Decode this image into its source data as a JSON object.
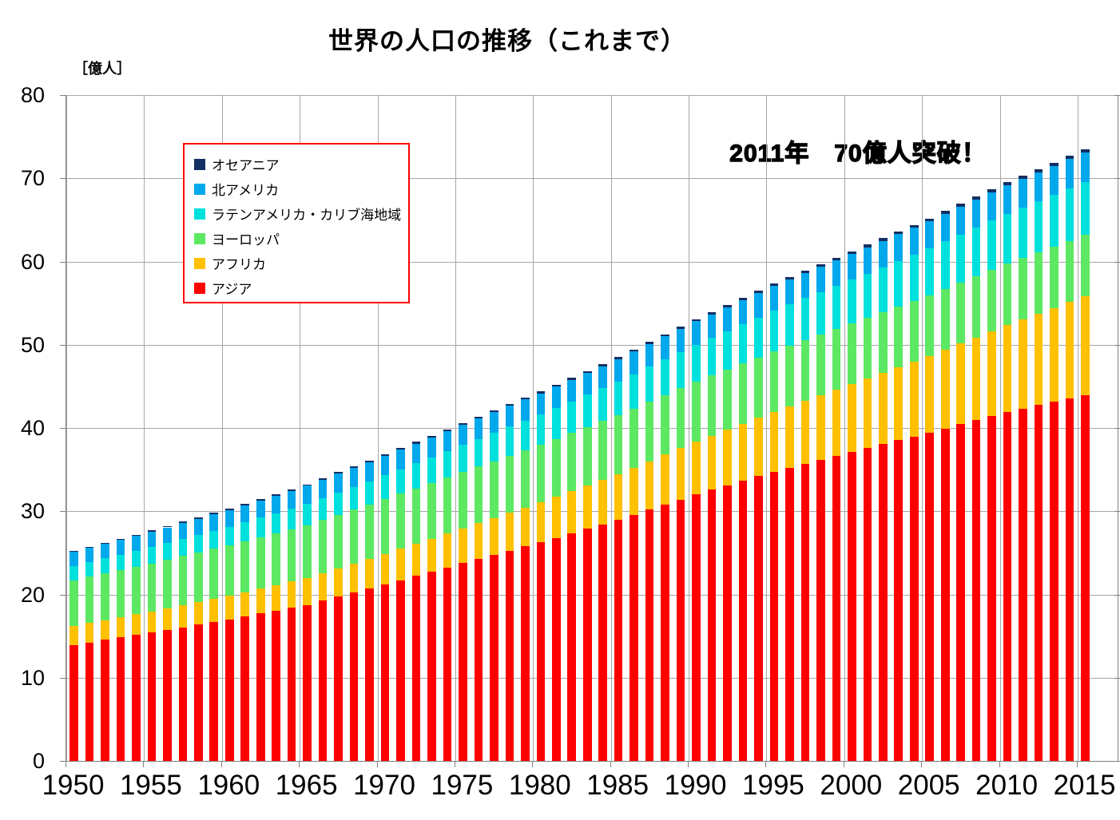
{
  "chart": {
    "title": "世界の人口の推移（これまで）",
    "unit_label": "［億人］",
    "annotation": "2011年　70億人突破！"
  },
  "legend": {
    "items": [
      {
        "label": "オセアニア",
        "color": "#132F63"
      },
      {
        "label": "北アメリカ",
        "color": "#00A8EC"
      },
      {
        "label": "ラテンアメリカ・カリブ海地域",
        "color": "#00E0DC"
      },
      {
        "label": "ヨーロッパ",
        "color": "#5CE863"
      },
      {
        "label": "アフリカ",
        "color": "#FFC000"
      },
      {
        "label": "アジア",
        "color": "#FF0000"
      }
    ]
  },
  "axes": {
    "y_ticks": [
      0,
      10,
      20,
      30,
      40,
      50,
      60,
      70,
      80
    ],
    "x_ticks": [
      1950,
      1955,
      1960,
      1965,
      1970,
      1975,
      1980,
      1985,
      1990,
      1995,
      2000,
      2005,
      2010,
      2015
    ]
  },
  "colors": {
    "grid": "#A6A6A6",
    "axis": "#808080",
    "legend_border": "#FF0000"
  },
  "chart_data": {
    "type": "bar",
    "stacked": true,
    "title": "世界の人口の推移（これまで）",
    "ylabel": "億人",
    "ylim": [
      0,
      80
    ],
    "grid": true,
    "legend_position": "upper-left-inside",
    "annotation": "2011年　70億人突破！",
    "x": [
      1950,
      1951,
      1952,
      1953,
      1954,
      1955,
      1956,
      1957,
      1958,
      1959,
      1960,
      1961,
      1962,
      1963,
      1964,
      1965,
      1966,
      1967,
      1968,
      1969,
      1970,
      1971,
      1972,
      1973,
      1974,
      1975,
      1976,
      1977,
      1978,
      1979,
      1980,
      1981,
      1982,
      1983,
      1984,
      1985,
      1986,
      1987,
      1988,
      1989,
      1990,
      1991,
      1992,
      1993,
      1994,
      1995,
      1996,
      1997,
      1998,
      1999,
      2000,
      2001,
      2002,
      2003,
      2004,
      2005,
      2006,
      2007,
      2008,
      2009,
      2010,
      2011,
      2012,
      2013,
      2014,
      2015
    ],
    "series": [
      {
        "name": "アジア",
        "color": "#FF0000",
        "values": [
          13.94,
          14.24,
          14.54,
          14.83,
          15.13,
          15.43,
          15.74,
          16.06,
          16.37,
          16.69,
          17.0,
          17.35,
          17.7,
          18.05,
          18.4,
          18.75,
          19.24,
          19.73,
          20.22,
          20.71,
          21.2,
          21.72,
          22.23,
          22.75,
          23.26,
          23.78,
          24.28,
          24.77,
          25.27,
          25.76,
          26.26,
          26.8,
          27.34,
          27.89,
          28.43,
          28.97,
          29.58,
          30.19,
          30.8,
          31.41,
          32.02,
          32.57,
          33.11,
          33.66,
          34.2,
          34.75,
          35.23,
          35.71,
          36.18,
          36.66,
          37.14,
          37.6,
          38.06,
          38.53,
          38.99,
          39.45,
          39.95,
          40.45,
          40.94,
          41.44,
          41.94,
          42.34,
          42.74,
          43.13,
          43.53,
          43.93
        ]
      },
      {
        "name": "アフリカ",
        "color": "#FFC000",
        "values": [
          2.29,
          2.34,
          2.39,
          2.44,
          2.49,
          2.54,
          2.6,
          2.66,
          2.73,
          2.79,
          2.85,
          2.92,
          3.0,
          3.07,
          3.15,
          3.22,
          3.31,
          3.4,
          3.48,
          3.57,
          3.66,
          3.76,
          3.86,
          3.96,
          4.06,
          4.16,
          4.28,
          4.41,
          4.53,
          4.66,
          4.78,
          4.92,
          5.07,
          5.21,
          5.36,
          5.5,
          5.66,
          5.83,
          5.99,
          6.16,
          6.32,
          6.5,
          6.67,
          6.85,
          7.02,
          7.2,
          7.39,
          7.58,
          7.76,
          7.95,
          8.14,
          8.35,
          8.56,
          8.78,
          8.99,
          9.2,
          9.45,
          9.7,
          9.94,
          10.19,
          10.44,
          10.72,
          11.01,
          11.29,
          11.58,
          11.86
        ]
      },
      {
        "name": "ヨーロッパ",
        "color": "#5CE863",
        "values": [
          5.49,
          5.55,
          5.6,
          5.66,
          5.71,
          5.77,
          5.83,
          5.89,
          5.94,
          6.0,
          6.06,
          6.12,
          6.18,
          6.23,
          6.29,
          6.35,
          6.39,
          6.44,
          6.48,
          6.53,
          6.57,
          6.61,
          6.65,
          6.69,
          6.73,
          6.77,
          6.8,
          6.84,
          6.87,
          6.91,
          6.94,
          6.97,
          7.0,
          7.02,
          7.05,
          7.08,
          7.11,
          7.14,
          7.16,
          7.19,
          7.22,
          7.23,
          7.24,
          7.26,
          7.27,
          7.28,
          7.28,
          7.27,
          7.27,
          7.26,
          7.26,
          7.27,
          7.27,
          7.28,
          7.28,
          7.29,
          7.3,
          7.31,
          7.33,
          7.34,
          7.35,
          7.36,
          7.36,
          7.37,
          7.37,
          7.38
        ]
      },
      {
        "name": "ラテンアメリカ・カリブ海地域",
        "color": "#00E0DC",
        "values": [
          1.69,
          1.74,
          1.79,
          1.83,
          1.88,
          1.93,
          1.99,
          2.04,
          2.1,
          2.15,
          2.21,
          2.28,
          2.34,
          2.41,
          2.47,
          2.54,
          2.61,
          2.68,
          2.74,
          2.81,
          2.88,
          2.95,
          3.03,
          3.1,
          3.18,
          3.25,
          3.33,
          3.41,
          3.48,
          3.56,
          3.64,
          3.72,
          3.8,
          3.87,
          3.95,
          4.03,
          4.12,
          4.2,
          4.29,
          4.37,
          4.46,
          4.54,
          4.62,
          4.71,
          4.79,
          4.87,
          4.95,
          5.03,
          5.1,
          5.18,
          5.26,
          5.34,
          5.41,
          5.49,
          5.56,
          5.64,
          5.71,
          5.78,
          5.86,
          5.93,
          6.0,
          6.07,
          6.14,
          6.2,
          6.27,
          6.34
        ]
      },
      {
        "name": "北アメリカ",
        "color": "#00A8EC",
        "values": [
          1.72,
          1.75,
          1.78,
          1.81,
          1.84,
          1.87,
          1.9,
          1.94,
          1.97,
          2.01,
          2.04,
          2.07,
          2.1,
          2.13,
          2.16,
          2.19,
          2.21,
          2.24,
          2.26,
          2.29,
          2.31,
          2.33,
          2.35,
          2.38,
          2.4,
          2.42,
          2.44,
          2.47,
          2.49,
          2.52,
          2.54,
          2.57,
          2.59,
          2.62,
          2.64,
          2.67,
          2.7,
          2.72,
          2.75,
          2.77,
          2.8,
          2.83,
          2.86,
          2.9,
          2.93,
          2.96,
          2.99,
          3.03,
          3.06,
          3.1,
          3.13,
          3.16,
          3.19,
          3.21,
          3.24,
          3.27,
          3.3,
          3.33,
          3.37,
          3.4,
          3.43,
          3.46,
          3.49,
          3.52,
          3.55,
          3.58
        ]
      },
      {
        "name": "オセアニア",
        "color": "#132F63",
        "values": [
          0.13,
          0.13,
          0.13,
          0.14,
          0.14,
          0.14,
          0.15,
          0.15,
          0.16,
          0.16,
          0.16,
          0.16,
          0.17,
          0.17,
          0.18,
          0.18,
          0.18,
          0.19,
          0.19,
          0.2,
          0.2,
          0.2,
          0.21,
          0.21,
          0.22,
          0.22,
          0.22,
          0.22,
          0.23,
          0.23,
          0.23,
          0.23,
          0.24,
          0.24,
          0.25,
          0.25,
          0.25,
          0.26,
          0.26,
          0.27,
          0.27,
          0.27,
          0.28,
          0.28,
          0.29,
          0.29,
          0.29,
          0.3,
          0.3,
          0.31,
          0.31,
          0.31,
          0.32,
          0.32,
          0.33,
          0.33,
          0.34,
          0.35,
          0.35,
          0.36,
          0.37,
          0.37,
          0.38,
          0.38,
          0.39,
          0.39
        ]
      }
    ]
  }
}
